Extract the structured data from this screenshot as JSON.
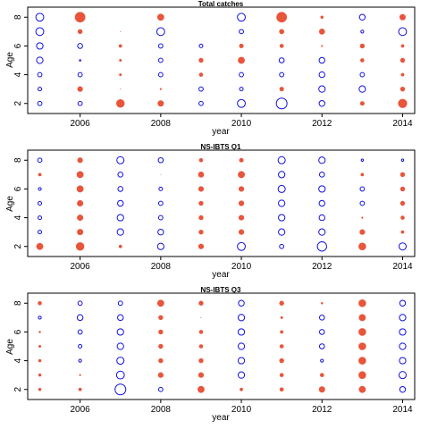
{
  "colors": {
    "positive": "#e8553b",
    "negative": "#1010e0",
    "frame": "#000000"
  },
  "chart_data": [
    {
      "type": "scatter",
      "subtype": "bubble-residual",
      "title": "Total catches",
      "xlabel": "year",
      "ylabel": "Age",
      "xlim": [
        2004.7,
        2014.3
      ],
      "ylim": [
        1.3,
        8.7
      ],
      "xticks": [
        2006,
        2008,
        2010,
        2012,
        2014
      ],
      "yticks": [
        2,
        4,
        6,
        8
      ],
      "years": [
        2005,
        2006,
        2007,
        2008,
        2009,
        2010,
        2011,
        2012,
        2013,
        2014
      ],
      "ages": [
        8,
        7,
        6,
        5,
        4,
        3,
        2
      ],
      "residuals": [
        [
          -5.5,
          7.0,
          0.0,
          4.5,
          0.0,
          -5.5,
          7.0,
          1.8,
          -4.0,
          4.0
        ],
        [
          -5.5,
          3.0,
          0.3,
          -5.5,
          0.0,
          -3.0,
          3.2,
          3.8,
          -2.0,
          -5.5
        ],
        [
          -4.5,
          -3.5,
          2.0,
          -3.0,
          -2.5,
          2.8,
          2.5,
          1.0,
          3.0,
          2.0
        ],
        [
          -4.5,
          -1.0,
          1.5,
          -3.0,
          3.0,
          4.5,
          -3.5,
          -4.0,
          2.5,
          3.0
        ],
        [
          -3.0,
          -3.0,
          1.5,
          -3.0,
          2.5,
          -3.0,
          -3.0,
          -4.0,
          -3.0,
          2.0
        ],
        [
          -2.5,
          3.5,
          0.3,
          1.0,
          -3.0,
          -2.5,
          2.8,
          -4.5,
          -4.5,
          3.0
        ],
        [
          -3.0,
          -3.0,
          5.5,
          4.0,
          -3.0,
          -5.5,
          -7.5,
          -4.0,
          2.8,
          6.0
        ]
      ]
    },
    {
      "type": "scatter",
      "subtype": "bubble-residual",
      "title": "NS-IBTS Q1",
      "xlabel": "year",
      "ylabel": "Age",
      "xlim": [
        2004.7,
        2014.3
      ],
      "ylim": [
        1.3,
        8.7
      ],
      "xticks": [
        2006,
        2008,
        2010,
        2012,
        2014
      ],
      "yticks": [
        2,
        4,
        6,
        8
      ],
      "years": [
        2005,
        2006,
        2007,
        2008,
        2009,
        2010,
        2011,
        2012,
        2013,
        2014
      ],
      "ages": [
        8,
        7,
        6,
        5,
        4,
        3,
        2
      ],
      "residuals": [
        [
          -3.0,
          3.5,
          -5.0,
          -3.5,
          2.5,
          2.8,
          -5.0,
          -4.5,
          -1.5,
          -1.5
        ],
        [
          2.0,
          4.5,
          -3.5,
          0.2,
          3.8,
          4.5,
          -4.5,
          -3.5,
          2.0,
          3.0
        ],
        [
          -2.0,
          4.5,
          -3.5,
          -2.5,
          3.5,
          3.5,
          -5.0,
          -4.5,
          -3.0,
          3.0
        ],
        [
          -2.5,
          4.0,
          -4.0,
          -3.0,
          3.0,
          3.5,
          -4.5,
          -4.0,
          -3.0,
          3.0
        ],
        [
          -2.5,
          4.0,
          -4.5,
          -3.0,
          3.0,
          3.5,
          -4.5,
          -4.0,
          1.0,
          2.5
        ],
        [
          -2.5,
          4.0,
          -4.5,
          -4.0,
          3.0,
          3.5,
          -4.5,
          -4.5,
          3.5,
          2.0
        ],
        [
          4.5,
          5.5,
          2.0,
          -4.5,
          3.5,
          -5.5,
          -3.0,
          -6.5,
          5.0,
          -5.0
        ]
      ]
    },
    {
      "type": "scatter",
      "subtype": "bubble-residual",
      "title": "NS-IBTS Q3",
      "xlabel": "year",
      "ylabel": "Age",
      "xlim": [
        2004.7,
        2014.3
      ],
      "ylim": [
        1.3,
        8.7
      ],
      "xticks": [
        2006,
        2008,
        2010,
        2012,
        2014
      ],
      "yticks": [
        2,
        4,
        6,
        8
      ],
      "years": [
        2005,
        2006,
        2007,
        2008,
        2009,
        2010,
        2011,
        2012,
        2013,
        2014
      ],
      "ages": [
        8,
        7,
        6,
        5,
        4,
        3,
        2
      ],
      "residuals": [
        [
          2.5,
          -3.0,
          -3.0,
          4.5,
          3.0,
          -4.0,
          3.0,
          1.2,
          5.0,
          -4.0
        ],
        [
          -2.0,
          -4.0,
          -4.0,
          3.0,
          0.3,
          -4.5,
          1.5,
          -3.5,
          4.5,
          -4.5
        ],
        [
          1.2,
          -3.0,
          -4.5,
          3.0,
          2.5,
          -4.5,
          2.0,
          -3.5,
          5.0,
          -4.5
        ],
        [
          1.5,
          -2.5,
          -4.5,
          3.0,
          2.5,
          -4.5,
          2.5,
          -3.5,
          5.0,
          -4.5
        ],
        [
          1.8,
          -2.0,
          -5.0,
          3.0,
          3.0,
          -4.5,
          3.0,
          -2.0,
          5.0,
          -4.5
        ],
        [
          1.8,
          1.0,
          -5.5,
          3.5,
          3.5,
          -4.5,
          2.5,
          2.5,
          5.0,
          -5.0
        ],
        [
          1.8,
          2.0,
          -7.5,
          -3.0,
          4.5,
          2.0,
          2.5,
          4.0,
          4.5,
          -4.0
        ]
      ]
    }
  ]
}
